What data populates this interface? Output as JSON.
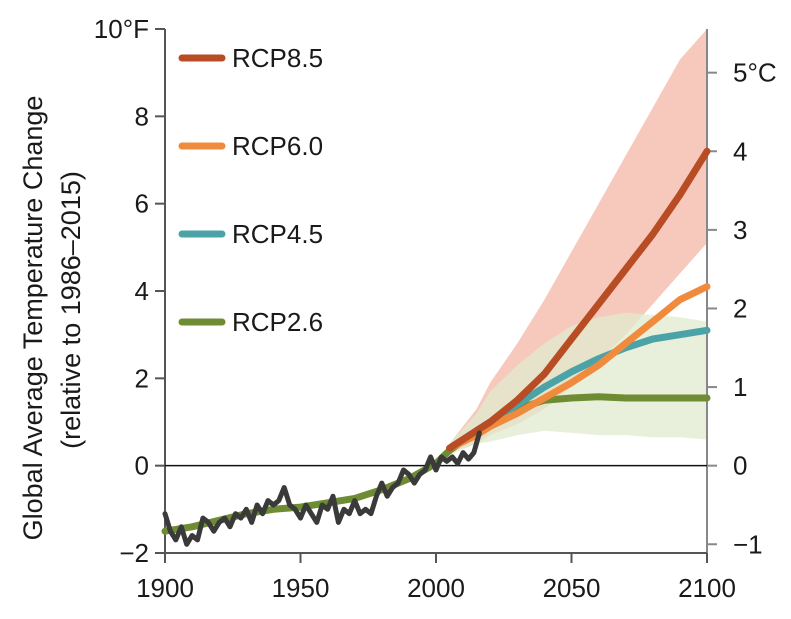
{
  "chart_data": {
    "type": "line",
    "xlabel": "",
    "ylabel": "Global Average Temperature Change",
    "ylabel_sub": "(relative to 1986–2015)",
    "x_ticks": [
      "1900",
      "1950",
      "2000",
      "2050",
      "2100"
    ],
    "xlim": [
      1900,
      2100
    ],
    "y_left": {
      "unit": "°F",
      "ylim": [
        -2,
        10
      ],
      "ticks": [
        {
          "value": -2,
          "label": "−2"
        },
        {
          "value": 0,
          "label": "0"
        },
        {
          "value": 2,
          "label": "2"
        },
        {
          "value": 4,
          "label": "4"
        },
        {
          "value": 6,
          "label": "6"
        },
        {
          "value": 8,
          "label": "8"
        },
        {
          "value": 10,
          "label": "10°F"
        }
      ]
    },
    "y_right": {
      "unit": "°C",
      "ticks": [
        {
          "value": -1,
          "label": "−1"
        },
        {
          "value": 0,
          "label": "0"
        },
        {
          "value": 1,
          "label": "1"
        },
        {
          "value": 2,
          "label": "2"
        },
        {
          "value": 3,
          "label": "3"
        },
        {
          "value": 4,
          "label": "4"
        },
        {
          "value": 5,
          "label": "5°C"
        }
      ]
    },
    "legend_placement": "top-left",
    "zero_line": true,
    "series": [
      {
        "name": "RCP8.5",
        "color": "#b84c25",
        "band_color": "#f6bfb0",
        "x": [
          2005,
          2015,
          2020,
          2030,
          2040,
          2050,
          2060,
          2070,
          2080,
          2090,
          2100
        ],
        "values": [
          0.4,
          0.8,
          1.0,
          1.5,
          2.1,
          2.9,
          3.7,
          4.5,
          5.3,
          6.2,
          7.2
        ],
        "band_upper": [
          0.5,
          1.3,
          1.9,
          2.8,
          3.8,
          4.9,
          6.0,
          7.1,
          8.2,
          9.3,
          10.0
        ],
        "band_lower": [
          0.3,
          0.5,
          0.7,
          0.95,
          1.3,
          1.8,
          2.4,
          3.0,
          3.7,
          4.4,
          5.1
        ]
      },
      {
        "name": "RCP6.0",
        "color": "#f08b3d",
        "x": [
          2005,
          2015,
          2020,
          2030,
          2040,
          2050,
          2060,
          2070,
          2080,
          2090,
          2100
        ],
        "values": [
          0.4,
          0.7,
          0.9,
          1.2,
          1.55,
          1.9,
          2.3,
          2.8,
          3.3,
          3.8,
          4.1
        ]
      },
      {
        "name": "RCP4.5",
        "color": "#4ba3a8",
        "x": [
          2005,
          2015,
          2020,
          2030,
          2040,
          2050,
          2060,
          2070,
          2080,
          2090,
          2100
        ],
        "values": [
          0.4,
          0.8,
          1.0,
          1.4,
          1.8,
          2.15,
          2.45,
          2.7,
          2.9,
          3.0,
          3.1
        ]
      },
      {
        "name": "RCP2.6",
        "color": "#6e8c33",
        "band_color": "#e0ebcf",
        "x": [
          1900,
          1910,
          1920,
          1930,
          1940,
          1950,
          1960,
          1970,
          1980,
          1990,
          2000,
          2005,
          2015,
          2020,
          2030,
          2040,
          2050,
          2060,
          2070,
          2080,
          2090,
          2100
        ],
        "values": [
          -1.5,
          -1.4,
          -1.25,
          -1.1,
          -1.0,
          -0.95,
          -0.85,
          -0.75,
          -0.55,
          -0.3,
          0.05,
          0.35,
          0.8,
          1.0,
          1.3,
          1.5,
          1.55,
          1.58,
          1.55,
          1.55,
          1.55,
          1.55
        ],
        "band_upper": [
          0.5,
          1.2,
          1.7,
          2.3,
          2.8,
          3.2,
          3.4,
          3.5,
          3.45,
          3.4,
          3.3
        ],
        "band_lower": [
          0.25,
          0.5,
          0.55,
          0.7,
          0.8,
          0.75,
          0.7,
          0.7,
          0.65,
          0.65,
          0.6
        ],
        "band_x": [
          2005,
          2015,
          2020,
          2030,
          2040,
          2050,
          2060,
          2070,
          2080,
          2090,
          2100
        ]
      },
      {
        "name": "",
        "role": "observed",
        "color": "#3a3a3a",
        "x": [
          1900,
          1902,
          1904,
          1906,
          1908,
          1910,
          1912,
          1914,
          1916,
          1918,
          1920,
          1922,
          1924,
          1926,
          1928,
          1930,
          1932,
          1934,
          1936,
          1938,
          1940,
          1942,
          1944,
          1946,
          1948,
          1950,
          1952,
          1954,
          1956,
          1958,
          1960,
          1962,
          1964,
          1966,
          1968,
          1970,
          1972,
          1974,
          1976,
          1978,
          1980,
          1982,
          1984,
          1986,
          1988,
          1990,
          1992,
          1994,
          1996,
          1998,
          2000,
          2002,
          2004,
          2006,
          2008,
          2010,
          2012,
          2014,
          2016
        ],
        "values": [
          -1.1,
          -1.5,
          -1.7,
          -1.4,
          -1.8,
          -1.6,
          -1.7,
          -1.2,
          -1.3,
          -1.5,
          -1.3,
          -1.2,
          -1.4,
          -1.1,
          -1.2,
          -1.0,
          -1.3,
          -0.9,
          -1.1,
          -0.8,
          -0.9,
          -0.8,
          -0.5,
          -0.9,
          -1.0,
          -1.2,
          -0.9,
          -1.1,
          -1.3,
          -0.9,
          -1.0,
          -0.7,
          -1.3,
          -1.0,
          -1.1,
          -0.8,
          -1.1,
          -1.0,
          -1.1,
          -0.7,
          -0.4,
          -0.7,
          -0.5,
          -0.4,
          -0.1,
          -0.2,
          -0.4,
          -0.2,
          -0.1,
          0.2,
          -0.1,
          0.2,
          0.1,
          0.2,
          0.05,
          0.3,
          0.15,
          0.3,
          0.75
        ]
      }
    ]
  }
}
